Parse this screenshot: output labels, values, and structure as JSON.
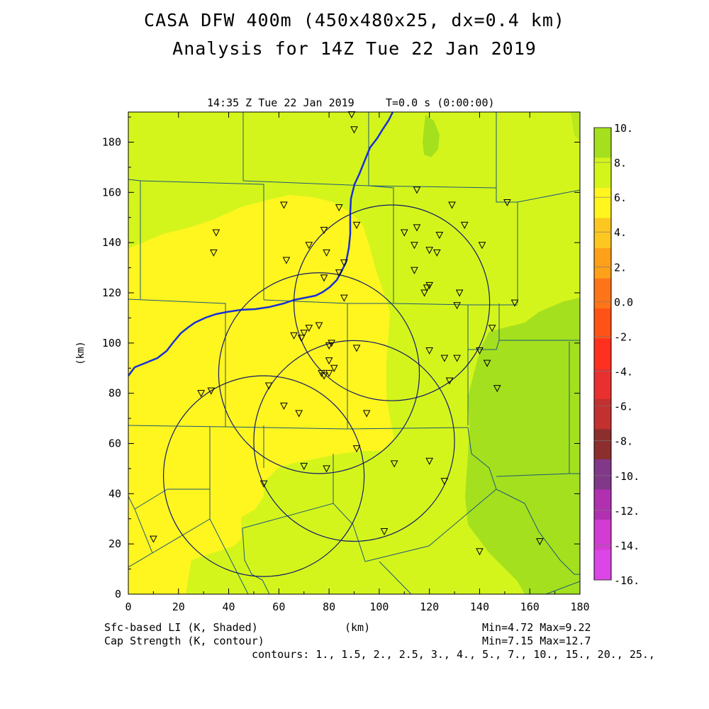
{
  "header": {
    "title_line1": "CASA DFW 400m (450x480x25, dx=0.4 km)",
    "title_line2": "Analysis for 14Z Tue 22 Jan 2019",
    "time_label": "14:35 Z Tue 22 Jan 2019",
    "time_step": "T=0.0 s (0:00:00)"
  },
  "axes": {
    "x_ticks": [
      "0",
      "20",
      "40",
      "60",
      "80",
      "100",
      "120",
      "140",
      "160",
      "180"
    ],
    "y_ticks": [
      "0",
      "20",
      "40",
      "60",
      "80",
      "100",
      "120",
      "140",
      "160",
      "180"
    ],
    "x_label": "(km)",
    "y_label": "(km)",
    "x_range": [
      0,
      180
    ],
    "y_range": [
      0,
      192
    ]
  },
  "colorbar": {
    "labels": [
      "10.",
      "8.",
      "6.",
      "4.",
      "2.",
      "0.0",
      "-2.",
      "-4.",
      "-6.",
      "-8.",
      "-10.",
      "-12.",
      "-14.",
      "-16."
    ],
    "colors": [
      "#a4e01e",
      "#d4f51c",
      "#fff51f",
      "#fcc720",
      "#ffa01a",
      "#fe7418",
      "#ff5216",
      "#ff3020",
      "#e83030",
      "#c23030",
      "#8c2e2e",
      "#823888",
      "#b030b0",
      "#d23cd2",
      "#dc46e6"
    ]
  },
  "footer": {
    "field1": "Sfc-based LI (K, Shaded)",
    "field2": "Cap Strength (K, contour)",
    "units": "(km)",
    "minmax1": "Min=4.72 Max=9.22",
    "minmax2": "Min=7.15 Max=12.7",
    "contours": "contours: 1., 1.5, 2., 2.5, 3., 4., 5., 7., 10., 15., 20., 25.,"
  },
  "map": {
    "fill_colors": {
      "li_6_8": "#d4f51c",
      "li_4_6": "#fff51f",
      "li_8_10": "#a4e01e",
      "li_8_10_b": "#b8e81e"
    },
    "radar_rings": [
      {
        "cx_km": 105,
        "cy_km": 116,
        "r_km": 39
      },
      {
        "cx_km": 76,
        "cy_km": 88,
        "r_km": 40
      },
      {
        "cx_km": 90,
        "cy_km": 61,
        "r_km": 40
      },
      {
        "cx_km": 54,
        "cy_km": 47,
        "r_km": 40
      }
    ],
    "stations_km": [
      [
        89,
        191
      ],
      [
        90,
        185
      ],
      [
        115,
        161
      ],
      [
        62,
        155
      ],
      [
        129,
        155
      ],
      [
        151,
        156
      ],
      [
        35,
        144
      ],
      [
        34,
        136
      ],
      [
        78,
        145
      ],
      [
        84,
        154
      ],
      [
        91,
        147
      ],
      [
        110,
        144
      ],
      [
        115,
        146
      ],
      [
        124,
        143
      ],
      [
        134,
        147
      ],
      [
        72,
        139
      ],
      [
        79,
        136
      ],
      [
        114,
        139
      ],
      [
        120,
        137
      ],
      [
        123,
        136
      ],
      [
        141,
        139
      ],
      [
        63,
        133
      ],
      [
        86,
        132
      ],
      [
        84,
        128
      ],
      [
        78,
        126
      ],
      [
        114,
        129
      ],
      [
        118,
        120
      ],
      [
        119,
        122
      ],
      [
        120,
        123
      ],
      [
        132,
        120
      ],
      [
        86,
        118
      ],
      [
        131,
        115
      ],
      [
        154,
        116
      ],
      [
        66,
        103
      ],
      [
        69,
        102
      ],
      [
        70,
        104
      ],
      [
        72,
        106
      ],
      [
        76,
        107
      ],
      [
        145,
        106
      ],
      [
        80,
        99
      ],
      [
        81,
        100
      ],
      [
        91,
        98
      ],
      [
        120,
        97
      ],
      [
        80,
        93
      ],
      [
        126,
        94
      ],
      [
        131,
        94
      ],
      [
        140,
        97
      ],
      [
        143,
        92
      ],
      [
        77,
        88
      ],
      [
        78,
        87
      ],
      [
        80,
        88
      ],
      [
        82,
        90
      ],
      [
        128,
        85
      ],
      [
        147,
        82
      ],
      [
        29,
        80
      ],
      [
        33,
        81
      ],
      [
        56,
        83
      ],
      [
        62,
        75
      ],
      [
        68,
        72
      ],
      [
        95,
        72
      ],
      [
        91,
        58
      ],
      [
        70,
        51
      ],
      [
        79,
        50
      ],
      [
        106,
        52
      ],
      [
        120,
        53
      ],
      [
        126,
        45
      ],
      [
        54,
        44
      ],
      [
        102,
        25
      ],
      [
        10,
        22
      ],
      [
        140,
        17
      ],
      [
        164,
        21
      ]
    ]
  }
}
